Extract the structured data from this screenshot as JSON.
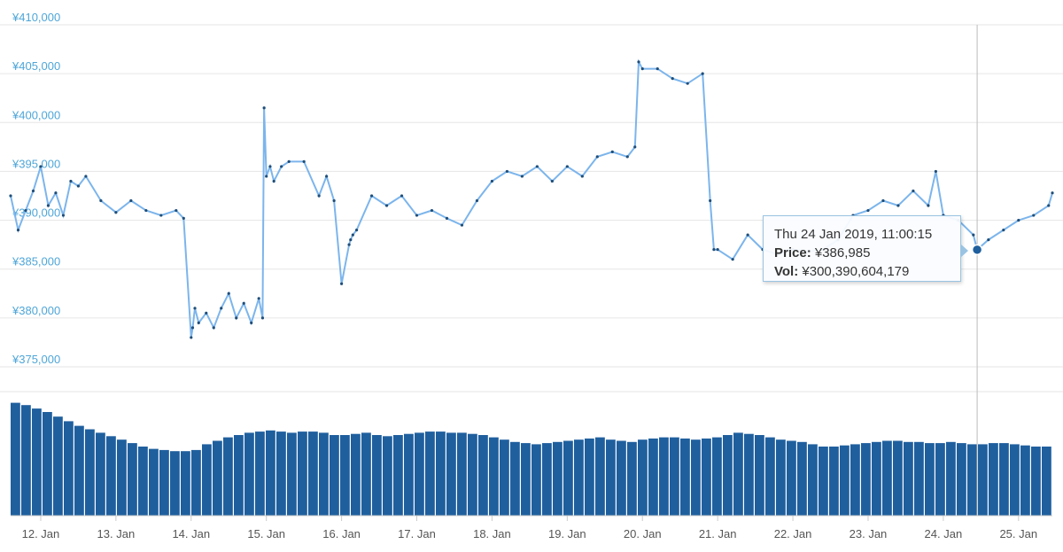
{
  "chart_data": [
    {
      "type": "line",
      "name": "price",
      "ylim": [
        375000,
        410000
      ],
      "yticks": [
        "¥410,000",
        "¥405,000",
        "¥400,000",
        "¥395,000",
        "¥390,000",
        "¥385,000",
        "¥380,000",
        "¥375,000"
      ],
      "ytick_values": [
        410000,
        405000,
        400000,
        395000,
        390000,
        385000,
        380000,
        375000
      ],
      "xlim": [
        11.6,
        25.45
      ],
      "xtick_labels": [
        "12. Jan",
        "13. Jan",
        "14. Jan",
        "15. Jan",
        "16. Jan",
        "17. Jan",
        "18. Jan",
        "19. Jan",
        "20. Jan",
        "21. Jan",
        "22. Jan",
        "23. Jan",
        "24. Jan",
        "25. Jan"
      ],
      "xtick_values": [
        12,
        13,
        14,
        15,
        16,
        17,
        18,
        19,
        20,
        21,
        22,
        23,
        24,
        25
      ],
      "x_unit": "day of January 2019",
      "grid": true,
      "color": "#7cb5ec",
      "marker_color": "#1f4e79",
      "x": [
        11.6,
        11.7,
        11.8,
        11.9,
        12.0,
        12.1,
        12.2,
        12.3,
        12.4,
        12.5,
        12.6,
        12.8,
        13.0,
        13.2,
        13.4,
        13.6,
        13.8,
        13.9,
        14.0,
        14.02,
        14.05,
        14.1,
        14.2,
        14.3,
        14.4,
        14.5,
        14.6,
        14.7,
        14.8,
        14.9,
        14.95,
        14.97,
        15.0,
        15.05,
        15.1,
        15.2,
        15.3,
        15.5,
        15.7,
        15.8,
        15.9,
        16.0,
        16.1,
        16.12,
        16.15,
        16.2,
        16.4,
        16.6,
        16.8,
        17.0,
        17.2,
        17.4,
        17.6,
        17.8,
        18.0,
        18.2,
        18.4,
        18.6,
        18.8,
        19.0,
        19.2,
        19.4,
        19.6,
        19.8,
        19.9,
        19.95,
        20.0,
        20.2,
        20.4,
        20.6,
        20.8,
        20.9,
        20.95,
        21.0,
        21.2,
        21.4,
        21.6,
        21.8,
        22.0,
        22.2,
        22.4,
        22.6,
        22.8,
        23.0,
        23.2,
        23.4,
        23.6,
        23.8,
        23.9,
        24.0,
        24.2,
        24.4,
        24.45,
        24.6,
        24.8,
        25.0,
        25.2,
        25.4,
        25.45
      ],
      "y": [
        392500,
        389000,
        391000,
        393000,
        395500,
        391500,
        392800,
        390500,
        394000,
        393500,
        394500,
        392000,
        390800,
        392000,
        391000,
        390500,
        391000,
        390200,
        378000,
        379000,
        381000,
        379500,
        380500,
        379000,
        381000,
        382500,
        380000,
        381500,
        379500,
        382000,
        380000,
        401500,
        394500,
        395500,
        394000,
        395500,
        396000,
        396000,
        392500,
        394500,
        392000,
        383500,
        387500,
        388000,
        388500,
        389000,
        392500,
        391500,
        392500,
        390500,
        391000,
        390200,
        389500,
        392000,
        394000,
        395000,
        394500,
        395500,
        394000,
        395500,
        394500,
        396500,
        397000,
        396500,
        397500,
        406200,
        405500,
        405500,
        404500,
        404000,
        405000,
        392000,
        387000,
        387000,
        386000,
        388500,
        387000,
        386500,
        387000,
        386800,
        387000,
        388000,
        390500,
        391000,
        392000,
        391500,
        393000,
        391500,
        395000,
        390500,
        390000,
        388500,
        386985,
        388000,
        389000,
        390000,
        390500,
        391500,
        392800
      ],
      "crosshair_x": 24.45
    },
    {
      "type": "bar",
      "name": "volume",
      "color": "#1f5f9e",
      "values_relative": [
        0.98,
        0.96,
        0.93,
        0.9,
        0.86,
        0.82,
        0.78,
        0.75,
        0.72,
        0.69,
        0.66,
        0.63,
        0.6,
        0.58,
        0.57,
        0.56,
        0.56,
        0.57,
        0.62,
        0.65,
        0.68,
        0.7,
        0.72,
        0.73,
        0.74,
        0.73,
        0.72,
        0.73,
        0.73,
        0.72,
        0.7,
        0.7,
        0.71,
        0.72,
        0.7,
        0.69,
        0.7,
        0.71,
        0.72,
        0.73,
        0.73,
        0.72,
        0.72,
        0.71,
        0.7,
        0.68,
        0.66,
        0.64,
        0.63,
        0.62,
        0.63,
        0.64,
        0.65,
        0.66,
        0.67,
        0.68,
        0.66,
        0.65,
        0.64,
        0.66,
        0.67,
        0.68,
        0.68,
        0.67,
        0.66,
        0.67,
        0.68,
        0.7,
        0.72,
        0.71,
        0.7,
        0.68,
        0.66,
        0.65,
        0.64,
        0.62,
        0.6,
        0.6,
        0.61,
        0.62,
        0.63,
        0.64,
        0.65,
        0.65,
        0.64,
        0.64,
        0.63,
        0.63,
        0.64,
        0.63,
        0.62,
        0.62,
        0.63,
        0.63,
        0.62,
        0.61,
        0.6,
        0.6
      ]
    }
  ],
  "tooltip": {
    "title": "Thu 24 Jan 2019, 11:00:15",
    "price_label": "Price:",
    "price_value": "¥386,985",
    "vol_label": "Vol:",
    "vol_value": "¥300,390,604,179"
  }
}
